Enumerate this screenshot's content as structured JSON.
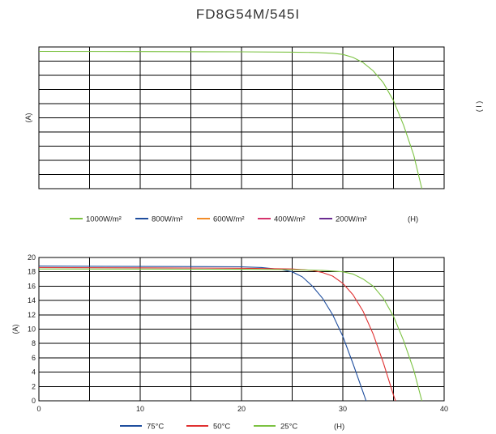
{
  "title": "FD8G54M/545I",
  "chart_data": [
    {
      "type": "line",
      "ylabel": "(A)",
      "xlabel": "(H)",
      "right_label": "( I )",
      "xlim": [
        0,
        40
      ],
      "ylim": [
        0,
        19
      ],
      "grid": true,
      "legend_position": "bottom",
      "series": [
        {
          "name": "1000W/m²",
          "color": "#7cc242",
          "x": [
            0,
            10,
            20,
            25,
            27.5,
            29,
            30,
            31,
            32,
            33,
            34,
            35,
            36,
            37,
            37.8
          ],
          "y": [
            18.4,
            18.38,
            18.35,
            18.3,
            18.25,
            18.15,
            18.0,
            17.6,
            16.9,
            15.8,
            14.2,
            11.8,
            8.5,
            4.5,
            0
          ]
        },
        {
          "name": "800W/m²",
          "color": "#1f4e9e",
          "x": [],
          "y": []
        },
        {
          "name": "600W/m²",
          "color": "#f28c28",
          "x": [],
          "y": []
        },
        {
          "name": "400W/m²",
          "color": "#d6336c",
          "x": [],
          "y": []
        },
        {
          "name": "200W/m²",
          "color": "#6a2c91",
          "x": [],
          "y": []
        }
      ]
    },
    {
      "type": "line",
      "ylabel": "(A)",
      "xlabel": "(H)",
      "xlim": [
        0,
        40
      ],
      "ylim": [
        0,
        20
      ],
      "xticks": [
        0,
        10,
        20,
        30,
        40
      ],
      "yticks": [
        0,
        2,
        4,
        6,
        8,
        10,
        12,
        14,
        16,
        18,
        20
      ],
      "grid": true,
      "legend_position": "bottom",
      "series": [
        {
          "name": "75°C",
          "color": "#1f4e9e",
          "x": [
            0,
            10,
            20,
            22,
            24,
            25,
            26,
            27,
            28,
            29,
            30,
            31,
            32,
            32.3
          ],
          "y": [
            18.8,
            18.75,
            18.7,
            18.6,
            18.3,
            18.0,
            17.3,
            16.0,
            14.3,
            12.0,
            9.0,
            5.2,
            1.2,
            0
          ]
        },
        {
          "name": "50°C",
          "color": "#e03131",
          "x": [
            0,
            10,
            20,
            25,
            27,
            28,
            29,
            30,
            31,
            32,
            33,
            34,
            35,
            35.2
          ],
          "y": [
            18.6,
            18.55,
            18.5,
            18.4,
            18.2,
            17.9,
            17.4,
            16.4,
            14.8,
            12.5,
            9.3,
            5.3,
            0.8,
            0
          ]
        },
        {
          "name": "25°C",
          "color": "#7cc242",
          "x": [
            0,
            10,
            20,
            25,
            28,
            30,
            31,
            32,
            33,
            34,
            35,
            36,
            37,
            37.8
          ],
          "y": [
            18.4,
            18.38,
            18.35,
            18.3,
            18.2,
            18.0,
            17.7,
            17.0,
            16.0,
            14.3,
            11.8,
            8.4,
            4.3,
            0
          ]
        }
      ]
    }
  ]
}
